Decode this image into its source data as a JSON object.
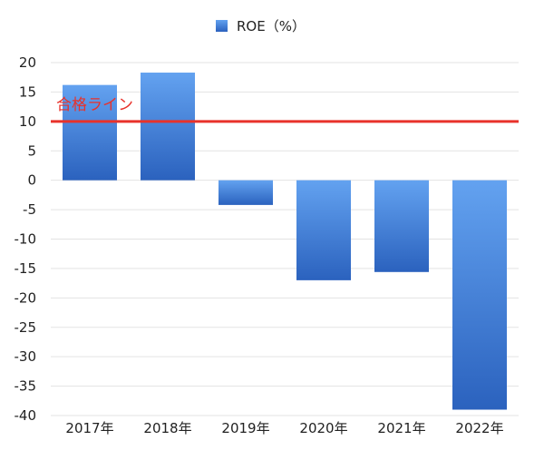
{
  "chart_data": {
    "type": "bar",
    "categories": [
      "2017年",
      "2018年",
      "2019年",
      "2020年",
      "2021年",
      "2022年"
    ],
    "series": [
      {
        "name": "ROE（%）",
        "values": [
          16.2,
          18.3,
          -4.2,
          -17.0,
          -15.6,
          -39.0
        ]
      }
    ],
    "ylim": [
      -40,
      20
    ],
    "yticks": [
      20,
      15,
      10,
      5,
      0,
      -5,
      -10,
      -15,
      -20,
      -25,
      -30,
      -35,
      -40
    ],
    "grid": true,
    "legend_position": "top-center",
    "reference_line": {
      "value": 10,
      "label": "合格ライン",
      "color": "#e8322b"
    },
    "colors": {
      "bar_top": "#63a2f0",
      "bar_bottom": "#2b62be",
      "grid": "#e3e3e3"
    }
  }
}
